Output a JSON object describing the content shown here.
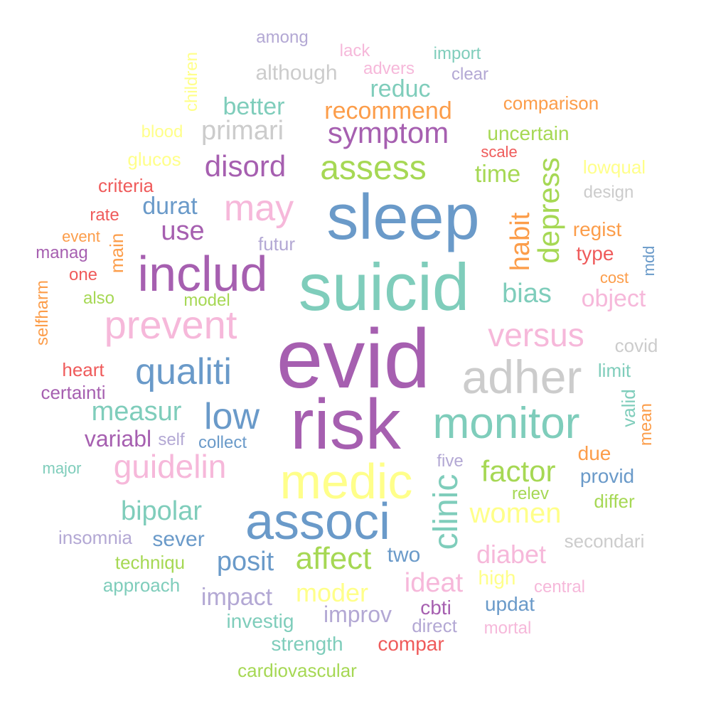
{
  "palette": {
    "purple": "#a65fb0",
    "blue": "#6a9ac9",
    "teal": "#7fcdbb",
    "pink": "#f6b8da",
    "yellow": "#ffff8a",
    "green": "#a6d854",
    "orange": "#fc9d4a",
    "red": "#ef5b5b",
    "gray": "#cccccc",
    "lavender": "#b3a8d4"
  },
  "words": [
    {
      "text": "evid",
      "color": "purple"
    },
    {
      "text": "risk",
      "color": "purple"
    },
    {
      "text": "suicid",
      "color": "teal"
    },
    {
      "text": "sleep",
      "color": "blue"
    },
    {
      "text": "medic",
      "color": "yellow"
    },
    {
      "text": "associ",
      "color": "blue"
    },
    {
      "text": "monitor",
      "color": "teal"
    },
    {
      "text": "includ",
      "color": "purple"
    },
    {
      "text": "adher",
      "color": "gray"
    },
    {
      "text": "prevent",
      "color": "pink"
    },
    {
      "text": "qualiti",
      "color": "blue"
    },
    {
      "text": "may",
      "color": "pink"
    },
    {
      "text": "clinic",
      "color": "teal"
    },
    {
      "text": "low",
      "color": "blue"
    },
    {
      "text": "guidelin",
      "color": "pink"
    },
    {
      "text": "symptom",
      "color": "purple"
    },
    {
      "text": "assess",
      "color": "green"
    },
    {
      "text": "versus",
      "color": "pink"
    },
    {
      "text": "factor",
      "color": "green"
    },
    {
      "text": "depress",
      "color": "green"
    },
    {
      "text": "affect",
      "color": "green"
    },
    {
      "text": "disord",
      "color": "purple"
    },
    {
      "text": "primari",
      "color": "gray"
    },
    {
      "text": "measur",
      "color": "teal"
    },
    {
      "text": "women",
      "color": "yellow"
    },
    {
      "text": "bipolar",
      "color": "teal"
    },
    {
      "text": "recommend",
      "color": "orange"
    },
    {
      "text": "use",
      "color": "purple"
    },
    {
      "text": "bias",
      "color": "teal"
    },
    {
      "text": "habit",
      "color": "orange"
    },
    {
      "text": "moder",
      "color": "yellow"
    },
    {
      "text": "ideat",
      "color": "pink"
    },
    {
      "text": "diabet",
      "color": "pink"
    },
    {
      "text": "posit",
      "color": "blue"
    },
    {
      "text": "object",
      "color": "pink"
    },
    {
      "text": "better",
      "color": "teal"
    },
    {
      "text": "reduc",
      "color": "teal"
    },
    {
      "text": "time",
      "color": "green"
    },
    {
      "text": "durat",
      "color": "blue"
    },
    {
      "text": "impact",
      "color": "lavender"
    },
    {
      "text": "variabl",
      "color": "purple"
    },
    {
      "text": "improv",
      "color": "lavender"
    },
    {
      "text": "although",
      "color": "gray"
    },
    {
      "text": "two",
      "color": "blue"
    },
    {
      "text": "sever",
      "color": "blue"
    },
    {
      "text": "uncertain",
      "color": "green"
    },
    {
      "text": "type",
      "color": "red"
    },
    {
      "text": "regist",
      "color": "orange"
    },
    {
      "text": "cbti",
      "color": "purple"
    },
    {
      "text": "due",
      "color": "orange"
    },
    {
      "text": "provid",
      "color": "blue"
    },
    {
      "text": "investig",
      "color": "teal"
    },
    {
      "text": "strength",
      "color": "teal"
    },
    {
      "text": "compar",
      "color": "red"
    },
    {
      "text": "updat",
      "color": "blue"
    },
    {
      "text": "high",
      "color": "yellow"
    },
    {
      "text": "comparison",
      "color": "orange"
    },
    {
      "text": "lowqual",
      "color": "yellow"
    },
    {
      "text": "futur",
      "color": "lavender"
    },
    {
      "text": "glucos",
      "color": "yellow"
    },
    {
      "text": "main",
      "color": "orange"
    },
    {
      "text": "criteria",
      "color": "red"
    },
    {
      "text": "heart",
      "color": "red"
    },
    {
      "text": "certainti",
      "color": "purple"
    },
    {
      "text": "insomnia",
      "color": "lavender"
    },
    {
      "text": "techniqu",
      "color": "green"
    },
    {
      "text": "approach",
      "color": "teal"
    },
    {
      "text": "cardiovascular",
      "color": "green"
    },
    {
      "text": "direct",
      "color": "lavender"
    },
    {
      "text": "secondari",
      "color": "gray"
    },
    {
      "text": "covid",
      "color": "gray"
    },
    {
      "text": "limit",
      "color": "teal"
    },
    {
      "text": "valid",
      "color": "teal"
    },
    {
      "text": "mean",
      "color": "orange"
    },
    {
      "text": "differ",
      "color": "green"
    },
    {
      "text": "relev",
      "color": "green"
    },
    {
      "text": "five",
      "color": "lavender"
    },
    {
      "text": "central",
      "color": "pink"
    },
    {
      "text": "mortal",
      "color": "pink"
    },
    {
      "text": "collect",
      "color": "blue"
    },
    {
      "text": "self",
      "color": "lavender"
    },
    {
      "text": "model",
      "color": "green"
    },
    {
      "text": "also",
      "color": "green"
    },
    {
      "text": "one",
      "color": "red"
    },
    {
      "text": "manag",
      "color": "purple"
    },
    {
      "text": "event",
      "color": "orange"
    },
    {
      "text": "rate",
      "color": "red"
    },
    {
      "text": "selfharm",
      "color": "orange"
    },
    {
      "text": "major",
      "color": "teal"
    },
    {
      "text": "blood",
      "color": "yellow"
    },
    {
      "text": "children",
      "color": "yellow"
    },
    {
      "text": "among",
      "color": "lavender"
    },
    {
      "text": "lack",
      "color": "pink"
    },
    {
      "text": "advers",
      "color": "pink"
    },
    {
      "text": "import",
      "color": "teal"
    },
    {
      "text": "clear",
      "color": "lavender"
    },
    {
      "text": "scale",
      "color": "red"
    },
    {
      "text": "design",
      "color": "gray"
    },
    {
      "text": "cost",
      "color": "orange"
    },
    {
      "text": "mdd",
      "color": "blue"
    }
  ]
}
